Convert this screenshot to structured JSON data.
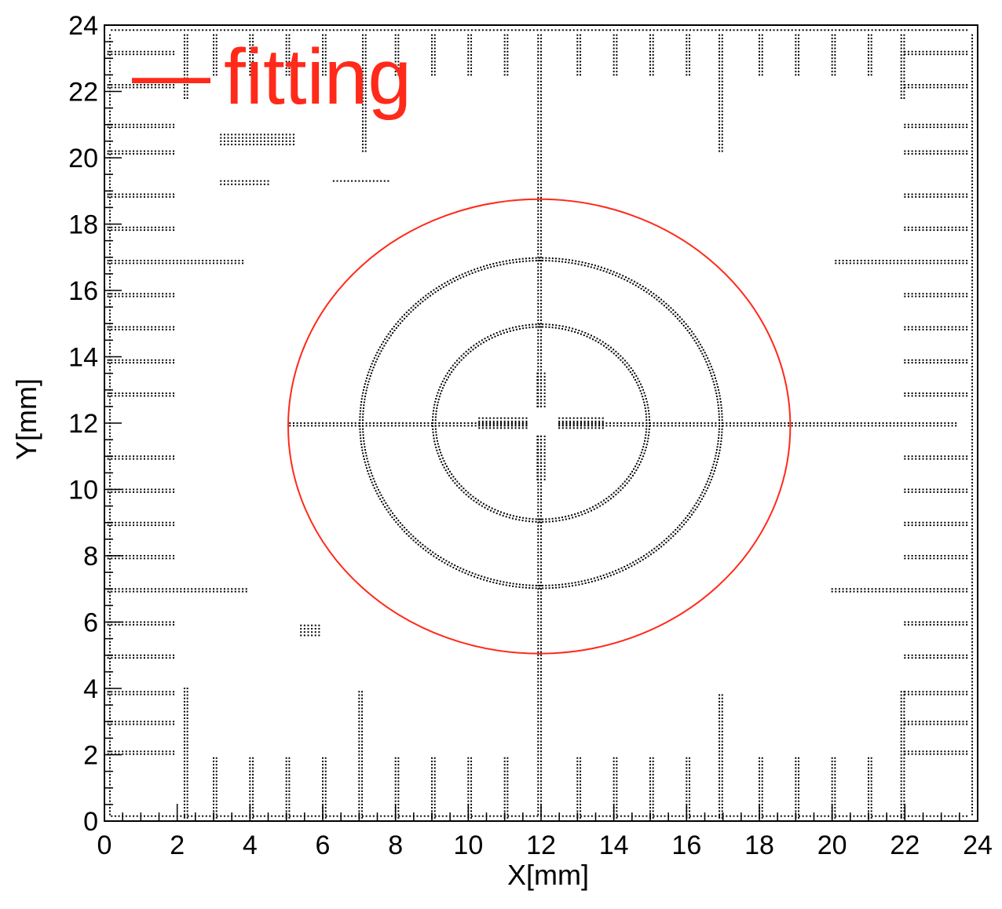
{
  "chart_data": {
    "type": "scatter",
    "xlabel": "X[mm]",
    "ylabel": "Y[mm]",
    "xlim": [
      0,
      24
    ],
    "ylim": [
      0,
      24
    ],
    "xticks": [
      "0",
      "2",
      "4",
      "6",
      "8",
      "10",
      "12",
      "14",
      "16",
      "18",
      "20",
      "22",
      "24"
    ],
    "yticks": [
      "0",
      "2",
      "4",
      "6",
      "8",
      "10",
      "12",
      "14",
      "16",
      "18",
      "20",
      "22",
      "24"
    ],
    "grid": false,
    "series": [
      {
        "kind": "hit-map points (target pattern)",
        "color": "#000000",
        "rings": [
          {
            "cx": 12,
            "cy": 12,
            "r": 2.9
          },
          {
            "cx": 12,
            "cy": 12,
            "r": 4.9
          }
        ],
        "crosshair": {
          "x": 12,
          "y": 12,
          "xrange": [
            5.1,
            23.5
          ],
          "yrange": [
            0.2,
            23.8
          ]
        },
        "scale_bars_left": [
          {
            "y": 23.2,
            "x0": 0.1,
            "x1": 2.0
          },
          {
            "y": 22.2,
            "x0": 0.1,
            "x1": 2.0
          },
          {
            "y": 21.0,
            "x0": 0.1,
            "x1": 2.0
          },
          {
            "y": 20.2,
            "x0": 0.1,
            "x1": 2.0
          },
          {
            "y": 18.9,
            "x0": 0.1,
            "x1": 2.0
          },
          {
            "y": 17.9,
            "x0": 0.1,
            "x1": 2.0
          },
          {
            "y": 16.9,
            "x0": 0.1,
            "x1": 3.9
          },
          {
            "y": 15.9,
            "x0": 0.1,
            "x1": 2.0
          },
          {
            "y": 14.9,
            "x0": 0.1,
            "x1": 2.0
          },
          {
            "y": 13.9,
            "x0": 0.1,
            "x1": 2.0
          },
          {
            "y": 12.9,
            "x0": 0.1,
            "x1": 2.0
          },
          {
            "y": 11.0,
            "x0": 0.1,
            "x1": 2.0
          },
          {
            "y": 10.0,
            "x0": 0.1,
            "x1": 2.0
          },
          {
            "y": 9.0,
            "x0": 0.1,
            "x1": 2.0
          },
          {
            "y": 8.0,
            "x0": 0.1,
            "x1": 2.0
          },
          {
            "y": 7.0,
            "x0": 0.1,
            "x1": 4.0
          },
          {
            "y": 6.0,
            "x0": 0.1,
            "x1": 2.0
          },
          {
            "y": 5.0,
            "x0": 0.1,
            "x1": 2.0
          },
          {
            "y": 3.9,
            "x0": 0.1,
            "x1": 2.0
          },
          {
            "y": 3.0,
            "x0": 0.1,
            "x1": 2.0
          },
          {
            "y": 2.1,
            "x0": 0.1,
            "x1": 2.0
          }
        ],
        "scale_bars_right": [
          {
            "y": 23.2,
            "x0": 22.0,
            "x1": 23.8
          },
          {
            "y": 22.2,
            "x0": 22.0,
            "x1": 23.8
          },
          {
            "y": 21.0,
            "x0": 22.0,
            "x1": 23.8
          },
          {
            "y": 20.2,
            "x0": 22.0,
            "x1": 23.8
          },
          {
            "y": 18.9,
            "x0": 22.0,
            "x1": 23.8
          },
          {
            "y": 17.9,
            "x0": 22.0,
            "x1": 23.8
          },
          {
            "y": 16.9,
            "x0": 20.1,
            "x1": 23.8
          },
          {
            "y": 15.9,
            "x0": 22.0,
            "x1": 23.8
          },
          {
            "y": 14.9,
            "x0": 22.0,
            "x1": 23.8
          },
          {
            "y": 13.9,
            "x0": 22.0,
            "x1": 23.8
          },
          {
            "y": 12.9,
            "x0": 22.0,
            "x1": 23.8
          },
          {
            "y": 11.0,
            "x0": 22.0,
            "x1": 23.8
          },
          {
            "y": 10.0,
            "x0": 22.0,
            "x1": 23.8
          },
          {
            "y": 9.0,
            "x0": 22.0,
            "x1": 23.8
          },
          {
            "y": 8.0,
            "x0": 22.0,
            "x1": 23.8
          },
          {
            "y": 7.0,
            "x0": 20.0,
            "x1": 23.8
          },
          {
            "y": 6.0,
            "x0": 22.0,
            "x1": 23.8
          },
          {
            "y": 5.0,
            "x0": 22.0,
            "x1": 23.8
          },
          {
            "y": 3.9,
            "x0": 22.0,
            "x1": 23.8
          },
          {
            "y": 3.0,
            "x0": 22.0,
            "x1": 23.8
          },
          {
            "y": 2.1,
            "x0": 22.0,
            "x1": 23.8
          }
        ],
        "scale_bars_bottom": [
          {
            "x": 2.2,
            "y0": 0.1,
            "y1": 4.1
          },
          {
            "x": 3.0,
            "y0": 0.1,
            "y1": 2.0
          },
          {
            "x": 4.0,
            "y0": 0.1,
            "y1": 2.0
          },
          {
            "x": 5.0,
            "y0": 0.1,
            "y1": 2.0
          },
          {
            "x": 6.0,
            "y0": 0.1,
            "y1": 2.0
          },
          {
            "x": 7.0,
            "y0": 0.1,
            "y1": 4.0
          },
          {
            "x": 8.0,
            "y0": 0.1,
            "y1": 2.0
          },
          {
            "x": 9.0,
            "y0": 0.1,
            "y1": 2.0
          },
          {
            "x": 10.0,
            "y0": 0.1,
            "y1": 2.0
          },
          {
            "x": 11.0,
            "y0": 0.1,
            "y1": 2.0
          },
          {
            "x": 13.0,
            "y0": 0.1,
            "y1": 2.0
          },
          {
            "x": 14.0,
            "y0": 0.1,
            "y1": 2.0
          },
          {
            "x": 15.0,
            "y0": 0.1,
            "y1": 2.0
          },
          {
            "x": 16.0,
            "y0": 0.1,
            "y1": 2.0
          },
          {
            "x": 16.9,
            "y0": 0.1,
            "y1": 3.9
          },
          {
            "x": 18.0,
            "y0": 0.1,
            "y1": 2.0
          },
          {
            "x": 19.0,
            "y0": 0.1,
            "y1": 2.0
          },
          {
            "x": 20.0,
            "y0": 0.1,
            "y1": 2.0
          },
          {
            "x": 21.0,
            "y0": 0.1,
            "y1": 2.0
          },
          {
            "x": 21.9,
            "y0": 0.1,
            "y1": 4.0
          }
        ],
        "scale_bars_top": [
          {
            "x": 2.2,
            "y0": 21.8,
            "y1": 23.8
          },
          {
            "x": 3.0,
            "y0": 22.5,
            "y1": 23.8
          },
          {
            "x": 4.0,
            "y0": 22.5,
            "y1": 23.8
          },
          {
            "x": 5.0,
            "y0": 22.5,
            "y1": 23.8
          },
          {
            "x": 6.0,
            "y0": 22.5,
            "y1": 23.8
          },
          {
            "x": 7.1,
            "y0": 20.2,
            "y1": 23.8
          },
          {
            "x": 8.0,
            "y0": 22.5,
            "y1": 23.8
          },
          {
            "x": 9.0,
            "y0": 22.5,
            "y1": 23.8
          },
          {
            "x": 10.0,
            "y0": 22.5,
            "y1": 23.8
          },
          {
            "x": 11.0,
            "y0": 22.5,
            "y1": 23.8
          },
          {
            "x": 13.0,
            "y0": 22.5,
            "y1": 23.8
          },
          {
            "x": 14.0,
            "y0": 22.5,
            "y1": 23.8
          },
          {
            "x": 15.0,
            "y0": 22.5,
            "y1": 23.8
          },
          {
            "x": 16.0,
            "y0": 22.5,
            "y1": 23.8
          },
          {
            "x": 16.9,
            "y0": 20.2,
            "y1": 23.8
          },
          {
            "x": 18.0,
            "y0": 22.5,
            "y1": 23.8
          },
          {
            "x": 19.0,
            "y0": 22.5,
            "y1": 23.8
          },
          {
            "x": 20.0,
            "y0": 22.5,
            "y1": 23.8
          },
          {
            "x": 21.0,
            "y0": 22.5,
            "y1": 23.8
          },
          {
            "x": 21.9,
            "y0": 21.8,
            "y1": 23.8
          }
        ]
      },
      {
        "name": "fitting",
        "kind": "circle fit",
        "color": "#ff2a1a",
        "cx": 11.95,
        "cy": 11.9,
        "rx": 6.9,
        "ry": 6.85
      }
    ],
    "legend": {
      "label": "fitting",
      "symbol": "—",
      "color": "#ff2a1a",
      "placement": "top-left"
    }
  }
}
